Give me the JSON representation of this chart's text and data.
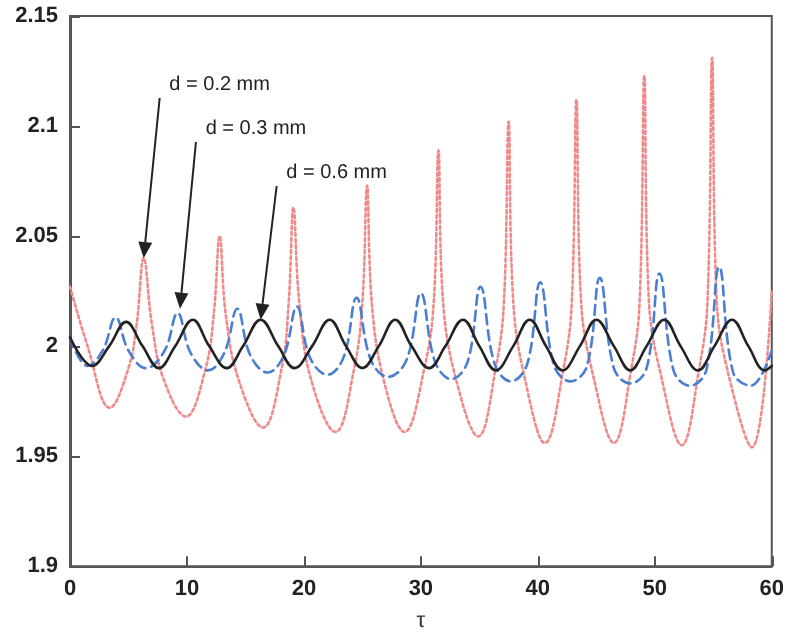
{
  "chart_data": {
    "type": "line",
    "xlabel": "τ",
    "xlim": [
      0,
      60
    ],
    "xticks": [
      0,
      10,
      20,
      30,
      40,
      50,
      60
    ],
    "ylim": [
      1.9,
      2.15
    ],
    "yticks": [
      {
        "value": 1.9,
        "label": "1.9"
      },
      {
        "value": 1.95,
        "label": "1.95"
      },
      {
        "value": 2,
        "label": "2"
      },
      {
        "value": 2.05,
        "label": "2.05"
      },
      {
        "value": 2.1,
        "label": "2.1"
      },
      {
        "value": 2.15,
        "label": "2.15"
      }
    ],
    "grid": false,
    "marker": "none",
    "annotations": [
      {
        "text": "d = 0.2 mm",
        "x": 6.3,
        "y": 2.04
      },
      {
        "text": "d = 0.3 mm",
        "x": 9.4,
        "y": 2.017
      },
      {
        "text": "d = 0.6 mm",
        "x": 16.3,
        "y": 2.012
      }
    ],
    "series": [
      {
        "color": "#f08a8a",
        "line_style": "dotted",
        "x": [
          0,
          1.5,
          3.4,
          5.0,
          5.7,
          6.3,
          7.0,
          8.0,
          9.9,
          11.6,
          12.3,
          12.8,
          13.3,
          14.4,
          16.5,
          18.1,
          18.7,
          19.1,
          19.6,
          20.6,
          22.7,
          24.3,
          25.0,
          25.4,
          25.8,
          26.8,
          28.6,
          30.3,
          31.1,
          31.5,
          31.9,
          33.0,
          34.9,
          36.4,
          37.1,
          37.5,
          37.9,
          38.9,
          40.6,
          42.2,
          42.9,
          43.3,
          43.7,
          44.8,
          46.5,
          48.0,
          48.7,
          49.1,
          49.5,
          50.6,
          52.3,
          53.8,
          54.5,
          54.9,
          55.3,
          56.4,
          58.3,
          60
        ],
        "values": [
          2.027,
          2.0,
          1.972,
          1.99,
          2.01,
          2.04,
          2.01,
          1.985,
          1.968,
          1.99,
          2.015,
          2.05,
          2.015,
          1.985,
          1.963,
          1.99,
          2.02,
          2.063,
          2.02,
          1.985,
          1.961,
          1.99,
          2.02,
          2.073,
          2.02,
          1.985,
          1.961,
          1.99,
          2.02,
          2.089,
          2.02,
          1.985,
          1.959,
          1.99,
          2.02,
          2.102,
          2.02,
          1.985,
          1.956,
          1.99,
          2.02,
          2.112,
          2.02,
          1.985,
          1.956,
          1.99,
          2.02,
          2.123,
          2.02,
          1.985,
          1.955,
          1.99,
          2.02,
          2.131,
          2.02,
          1.985,
          1.954,
          2.025
        ]
      },
      {
        "color": "#4a7fd0",
        "line_style": "dashed",
        "x": [
          0,
          1.5,
          2.8,
          3.9,
          5.0,
          6.5,
          8.1,
          9.2,
          10.3,
          11.8,
          13.2,
          14.3,
          15.4,
          16.9,
          18.3,
          19.4,
          20.5,
          22.0,
          23.4,
          24.5,
          25.7,
          27.2,
          28.8,
          30.0,
          31.2,
          32.6,
          34.0,
          35.1,
          36.3,
          37.7,
          39.1,
          40.2,
          41.4,
          42.8,
          44.2,
          45.3,
          46.5,
          47.9,
          49.3,
          50.4,
          51.6,
          53.0,
          54.4,
          55.5,
          56.7,
          58.2,
          60
        ],
        "values": [
          2.004,
          1.991,
          1.998,
          2.013,
          1.998,
          1.99,
          1.998,
          2.015,
          1.997,
          1.989,
          1.997,
          2.017,
          1.996,
          1.988,
          1.996,
          2.018,
          1.995,
          1.987,
          1.995,
          2.022,
          1.994,
          1.986,
          1.994,
          2.024,
          1.993,
          1.985,
          1.993,
          2.027,
          1.992,
          1.984,
          1.992,
          2.029,
          1.991,
          1.984,
          1.991,
          2.031,
          1.99,
          1.983,
          1.99,
          2.033,
          1.989,
          1.982,
          1.989,
          2.036,
          1.988,
          1.982,
          1.998
        ]
      },
      {
        "color": "#222222",
        "line_style": "solid",
        "x": [
          0,
          1.9,
          3.35,
          4.8,
          6.2,
          7.6,
          9.0,
          10.5,
          11.9,
          13.4,
          14.8,
          16.3,
          17.8,
          19.2,
          20.7,
          22.2,
          23.6,
          25.0,
          26.4,
          27.8,
          29.2,
          30.7,
          32.1,
          33.6,
          35.0,
          36.4,
          37.9,
          39.3,
          40.7,
          42.1,
          43.6,
          45.0,
          46.5,
          47.9,
          49.3,
          50.8,
          52.2,
          53.7,
          55.1,
          56.6,
          58.0,
          59.4,
          60
        ],
        "values": [
          2.004,
          1.991,
          2.0,
          2.011,
          2.0,
          1.99,
          2.0,
          2.012,
          2.0,
          1.99,
          2.0,
          2.012,
          2.0,
          1.99,
          2.0,
          2.012,
          2.0,
          1.99,
          2.0,
          2.012,
          2.0,
          1.99,
          2.0,
          2.012,
          2.0,
          1.989,
          2.0,
          2.012,
          2.0,
          1.989,
          2.0,
          2.012,
          2.0,
          1.989,
          2.0,
          2.012,
          2.0,
          1.989,
          2.0,
          2.012,
          2.0,
          1.989,
          1.991
        ]
      }
    ]
  }
}
